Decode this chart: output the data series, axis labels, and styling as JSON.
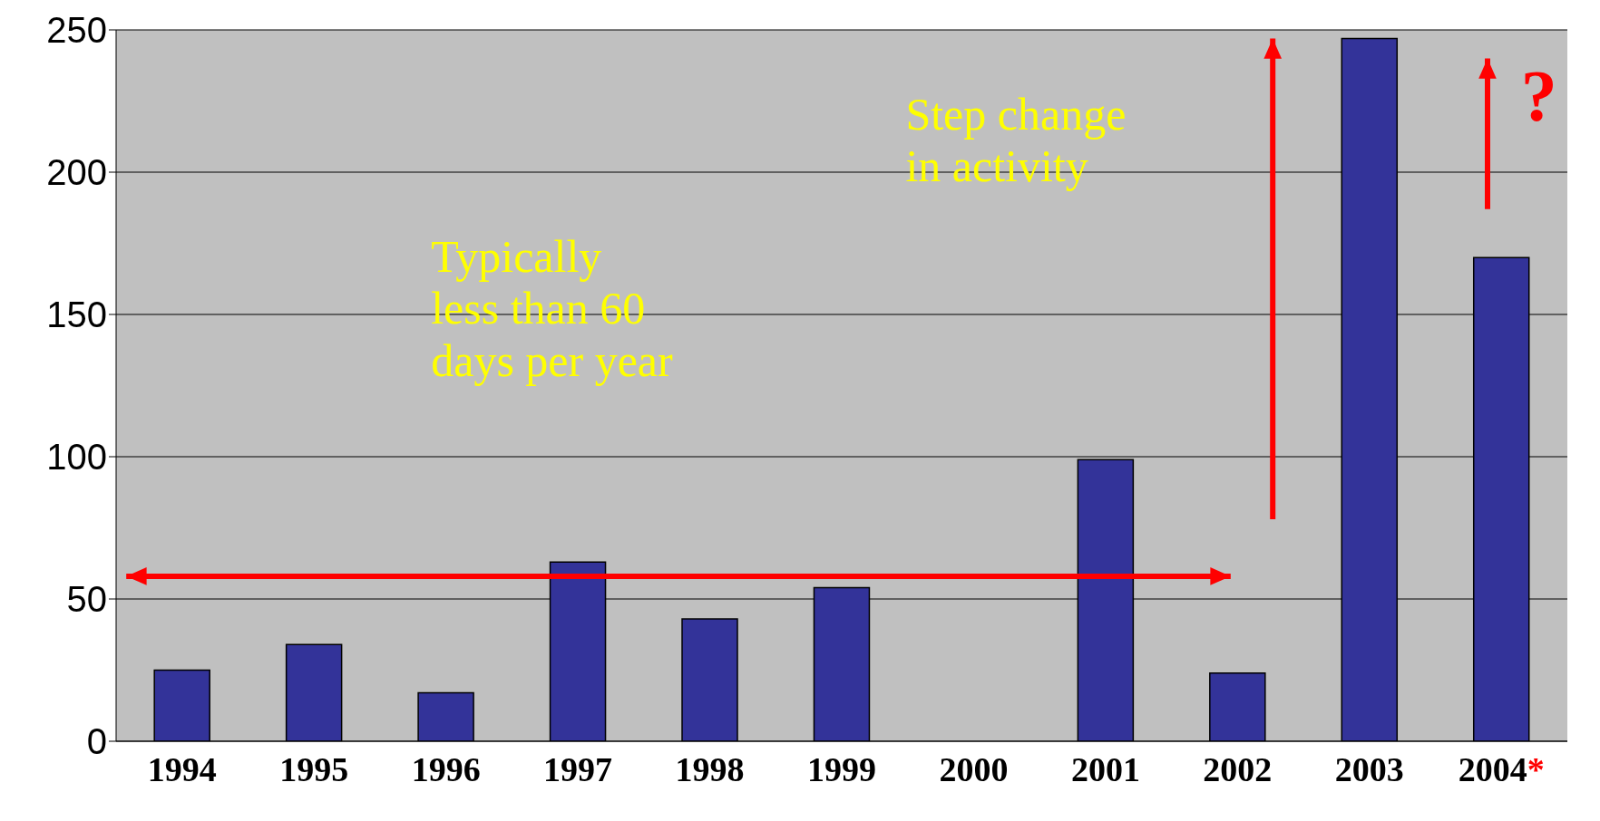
{
  "chart_data": {
    "type": "bar",
    "categories": [
      "1994",
      "1995",
      "1996",
      "1997",
      "1998",
      "1999",
      "2000",
      "2001",
      "2002",
      "2003",
      "2004*"
    ],
    "values": [
      25,
      34,
      17,
      63,
      43,
      54,
      0,
      99,
      24,
      247,
      170
    ],
    "color": "#333399",
    "ylim": [
      0,
      250
    ],
    "yticks": [
      0,
      50,
      100,
      150,
      200,
      250
    ],
    "grid": "y",
    "annotations": [
      "Typically\nless than 60\ndays per year",
      "Step change\nin activity",
      "?"
    ]
  }
}
